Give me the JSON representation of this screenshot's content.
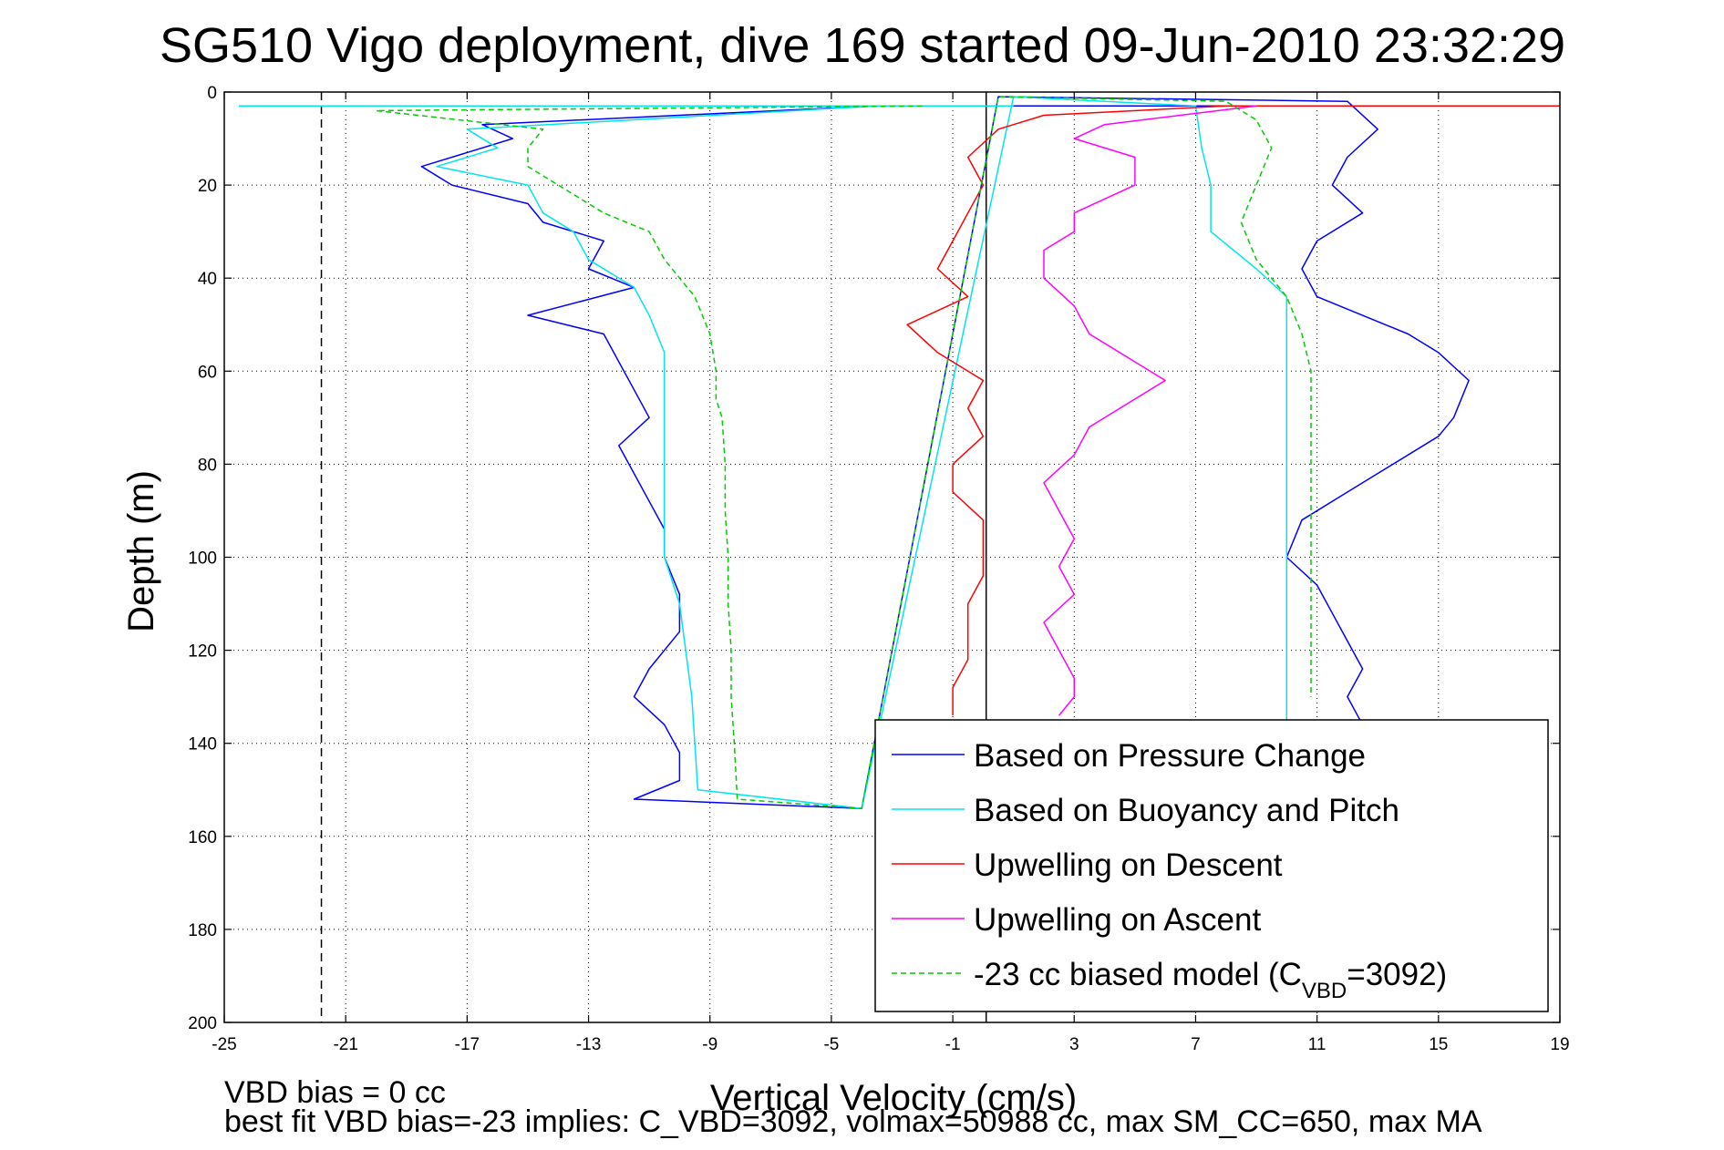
{
  "chart_data": {
    "type": "line",
    "title": "SG510 Vigo deployment, dive 169 started 09-Jun-2010 23:32:29",
    "xlabel": "Vertical Velocity (cm/s)",
    "ylabel": "Depth (m)",
    "xlim": [
      -25,
      19
    ],
    "ylim": [
      0,
      200
    ],
    "y_reversed": true,
    "x_ticks": [
      -25,
      -21,
      -17,
      -13,
      -9,
      -5,
      -1,
      3,
      7,
      11,
      15,
      19
    ],
    "y_ticks": [
      0,
      20,
      40,
      60,
      80,
      100,
      120,
      140,
      160,
      180,
      200
    ],
    "grid": true,
    "legend_position": "bottom-right",
    "reference_lines": [
      {
        "x": -21.8,
        "style": "dashed",
        "color": "#000000"
      },
      {
        "x": 0.1,
        "style": "solid",
        "color": "#000000"
      }
    ],
    "series": [
      {
        "name": "Based on Pressure Change",
        "color": "#0000ff",
        "style": "solid",
        "points": [
          [
            10,
            3
          ],
          [
            -8.5,
            3
          ],
          [
            -3.5,
            3
          ],
          [
            -16.5,
            7
          ],
          [
            -15.5,
            10
          ],
          [
            -18.5,
            16
          ],
          [
            -17.5,
            20
          ],
          [
            -15,
            24
          ],
          [
            -14.5,
            28
          ],
          [
            -12.5,
            32
          ],
          [
            -13,
            38
          ],
          [
            -11.5,
            42
          ],
          [
            -15,
            48
          ],
          [
            -12.5,
            52
          ],
          [
            -12,
            58
          ],
          [
            -11.5,
            64
          ],
          [
            -11,
            70
          ],
          [
            -12,
            76
          ],
          [
            -11.5,
            82
          ],
          [
            -11,
            88
          ],
          [
            -10.5,
            94
          ],
          [
            -10.5,
            100
          ],
          [
            -10,
            108
          ],
          [
            -10,
            116
          ],
          [
            -11,
            124
          ],
          [
            -11.5,
            130
          ],
          [
            -10.5,
            136
          ],
          [
            -10,
            142
          ],
          [
            -10,
            148
          ],
          [
            -11.5,
            152
          ],
          [
            -4,
            154
          ],
          [
            0.5,
            1
          ],
          [
            12,
            2
          ],
          [
            13,
            8
          ],
          [
            12,
            14
          ],
          [
            11.5,
            20
          ],
          [
            12.5,
            26
          ],
          [
            11,
            32
          ],
          [
            10.5,
            38
          ],
          [
            11,
            44
          ],
          [
            14,
            52
          ],
          [
            15,
            56
          ],
          [
            16,
            62
          ],
          [
            15.5,
            70
          ],
          [
            15,
            74
          ],
          [
            13.5,
            80
          ],
          [
            12,
            86
          ],
          [
            10.5,
            92
          ],
          [
            10,
            100
          ],
          [
            11,
            106
          ],
          [
            11.5,
            112
          ],
          [
            12,
            118
          ],
          [
            12.5,
            124
          ],
          [
            12,
            130
          ],
          [
            12.5,
            136
          ]
        ]
      },
      {
        "name": "Based on Buoyancy and Pitch",
        "color": "#00e5ee",
        "style": "solid",
        "points": [
          [
            1,
            3
          ],
          [
            -24.5,
            3
          ],
          [
            -3.5,
            3
          ],
          [
            -17,
            8
          ],
          [
            -16,
            12
          ],
          [
            -18,
            16
          ],
          [
            -15,
            20
          ],
          [
            -14.5,
            26
          ],
          [
            -13.5,
            30
          ],
          [
            -13,
            36
          ],
          [
            -11.5,
            42
          ],
          [
            -11,
            48
          ],
          [
            -10.5,
            56
          ],
          [
            -10.5,
            64
          ],
          [
            -10.5,
            72
          ],
          [
            -10.5,
            80
          ],
          [
            -10.5,
            90
          ],
          [
            -10.5,
            100
          ],
          [
            -10,
            110
          ],
          [
            -9.8,
            120
          ],
          [
            -9.6,
            130
          ],
          [
            -9.5,
            140
          ],
          [
            -9.4,
            150
          ],
          [
            -4,
            154
          ],
          [
            1,
            1
          ],
          [
            7,
            3
          ],
          [
            7.2,
            12
          ],
          [
            7.5,
            20
          ],
          [
            7.5,
            30
          ],
          [
            9,
            38
          ],
          [
            10,
            44
          ],
          [
            10,
            52
          ],
          [
            10,
            60
          ],
          [
            10,
            70
          ],
          [
            10,
            80
          ],
          [
            10,
            90
          ],
          [
            10,
            100
          ],
          [
            10,
            110
          ],
          [
            10,
            120
          ],
          [
            10,
            130
          ],
          [
            10,
            140
          ]
        ]
      },
      {
        "name": "Upwelling on Descent",
        "color": "#ff0000",
        "style": "solid",
        "points": [
          [
            19,
            3
          ],
          [
            8,
            3
          ],
          [
            2,
            5
          ],
          [
            0.5,
            8
          ],
          [
            -0.5,
            14
          ],
          [
            0,
            20
          ],
          [
            -0.5,
            26
          ],
          [
            -1,
            32
          ],
          [
            -1.5,
            38
          ],
          [
            -0.5,
            44
          ],
          [
            -2.5,
            50
          ],
          [
            -1.5,
            56
          ],
          [
            0,
            62
          ],
          [
            -0.5,
            68
          ],
          [
            0,
            74
          ],
          [
            -1,
            80
          ],
          [
            -1,
            86
          ],
          [
            0,
            92
          ],
          [
            0,
            98
          ],
          [
            0,
            104
          ],
          [
            -0.5,
            110
          ],
          [
            -0.5,
            116
          ],
          [
            -0.5,
            122
          ],
          [
            -1,
            128
          ],
          [
            -1,
            134
          ]
        ]
      },
      {
        "name": "Upwelling on Ascent",
        "color": "#ff00ff",
        "style": "solid",
        "points": [
          [
            9,
            3
          ],
          [
            4,
            7
          ],
          [
            3,
            10
          ],
          [
            5,
            14
          ],
          [
            5,
            20
          ],
          [
            3,
            26
          ],
          [
            3,
            30
          ],
          [
            2,
            34
          ],
          [
            2,
            40
          ],
          [
            3,
            46
          ],
          [
            3.5,
            52
          ],
          [
            5,
            58
          ],
          [
            6,
            62
          ],
          [
            5,
            66
          ],
          [
            3.5,
            72
          ],
          [
            3,
            78
          ],
          [
            2,
            84
          ],
          [
            2.5,
            90
          ],
          [
            3,
            96
          ],
          [
            2.5,
            102
          ],
          [
            3,
            108
          ],
          [
            2,
            114
          ],
          [
            2.5,
            120
          ],
          [
            3,
            126
          ],
          [
            3,
            130
          ],
          [
            2.5,
            134
          ]
        ]
      },
      {
        "name": "-23 cc biased model (C_VBD=3092)",
        "legend_label": "-23 cc biased model (C",
        "legend_sub": "VBD",
        "legend_tail": "=3092)",
        "color": "#00cc00",
        "style": "dashed",
        "points": [
          [
            -2,
            3
          ],
          [
            -20,
            4
          ],
          [
            -14.5,
            8
          ],
          [
            -15,
            12
          ],
          [
            -15,
            16
          ],
          [
            -14,
            20
          ],
          [
            -12.5,
            26
          ],
          [
            -11,
            30
          ],
          [
            -10.5,
            36
          ],
          [
            -9.5,
            44
          ],
          [
            -9,
            52
          ],
          [
            -8.8,
            60
          ],
          [
            -8.8,
            66
          ],
          [
            -8.6,
            70
          ],
          [
            -8.5,
            80
          ],
          [
            -8.5,
            90
          ],
          [
            -8.4,
            100
          ],
          [
            -8.4,
            110
          ],
          [
            -8.3,
            120
          ],
          [
            -8.3,
            130
          ],
          [
            -8.2,
            140
          ],
          [
            -8.1,
            152
          ],
          [
            -4,
            154
          ],
          [
            0.5,
            1
          ],
          [
            8,
            2
          ],
          [
            9,
            6
          ],
          [
            9.5,
            12
          ],
          [
            9,
            20
          ],
          [
            8.5,
            28
          ],
          [
            9,
            36
          ],
          [
            10,
            44
          ],
          [
            10.5,
            52
          ],
          [
            10.8,
            60
          ],
          [
            10.8,
            70
          ],
          [
            10.8,
            80
          ],
          [
            10.8,
            90
          ],
          [
            10.8,
            100
          ],
          [
            10.8,
            110
          ],
          [
            10.8,
            120
          ],
          [
            10.8,
            130
          ]
        ]
      }
    ]
  },
  "footer": {
    "line1": "VBD bias = 0 cc",
    "line2": "best fit VBD bias=-23 implies: C_VBD=3092, volmax=50988 cc, max SM_CC=650, max MA"
  }
}
